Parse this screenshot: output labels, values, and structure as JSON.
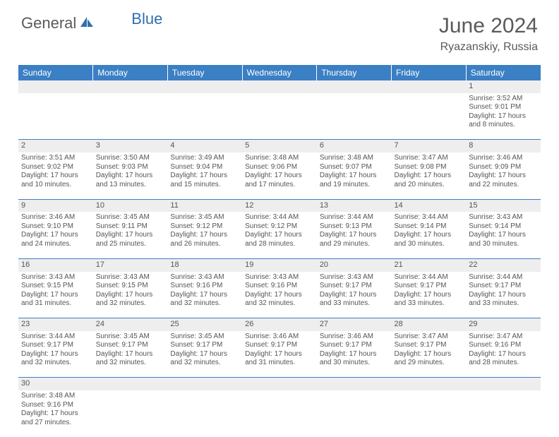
{
  "brand": {
    "part1": "General",
    "part2": "Blue",
    "part1_color": "#5a5a5a",
    "part2_color": "#2f6fb0"
  },
  "title": "June 2024",
  "location": "Ryazanskiy, Russia",
  "colors": {
    "header_bg": "#3b7fc4",
    "header_text": "#ffffff",
    "daynum_bg": "#eeeeee",
    "text": "#555555",
    "rule": "#3b7fc4",
    "sail": "#2f6fb0"
  },
  "weekdays": [
    "Sunday",
    "Monday",
    "Tuesday",
    "Wednesday",
    "Thursday",
    "Friday",
    "Saturday"
  ],
  "weeks": [
    [
      null,
      null,
      null,
      null,
      null,
      null,
      {
        "n": "1",
        "sr": "3:52 AM",
        "ss": "9:01 PM",
        "dl": "17 hours and 8 minutes."
      }
    ],
    [
      {
        "n": "2",
        "sr": "3:51 AM",
        "ss": "9:02 PM",
        "dl": "17 hours and 10 minutes."
      },
      {
        "n": "3",
        "sr": "3:50 AM",
        "ss": "9:03 PM",
        "dl": "17 hours and 13 minutes."
      },
      {
        "n": "4",
        "sr": "3:49 AM",
        "ss": "9:04 PM",
        "dl": "17 hours and 15 minutes."
      },
      {
        "n": "5",
        "sr": "3:48 AM",
        "ss": "9:06 PM",
        "dl": "17 hours and 17 minutes."
      },
      {
        "n": "6",
        "sr": "3:48 AM",
        "ss": "9:07 PM",
        "dl": "17 hours and 19 minutes."
      },
      {
        "n": "7",
        "sr": "3:47 AM",
        "ss": "9:08 PM",
        "dl": "17 hours and 20 minutes."
      },
      {
        "n": "8",
        "sr": "3:46 AM",
        "ss": "9:09 PM",
        "dl": "17 hours and 22 minutes."
      }
    ],
    [
      {
        "n": "9",
        "sr": "3:46 AM",
        "ss": "9:10 PM",
        "dl": "17 hours and 24 minutes."
      },
      {
        "n": "10",
        "sr": "3:45 AM",
        "ss": "9:11 PM",
        "dl": "17 hours and 25 minutes."
      },
      {
        "n": "11",
        "sr": "3:45 AM",
        "ss": "9:12 PM",
        "dl": "17 hours and 26 minutes."
      },
      {
        "n": "12",
        "sr": "3:44 AM",
        "ss": "9:12 PM",
        "dl": "17 hours and 28 minutes."
      },
      {
        "n": "13",
        "sr": "3:44 AM",
        "ss": "9:13 PM",
        "dl": "17 hours and 29 minutes."
      },
      {
        "n": "14",
        "sr": "3:44 AM",
        "ss": "9:14 PM",
        "dl": "17 hours and 30 minutes."
      },
      {
        "n": "15",
        "sr": "3:43 AM",
        "ss": "9:14 PM",
        "dl": "17 hours and 30 minutes."
      }
    ],
    [
      {
        "n": "16",
        "sr": "3:43 AM",
        "ss": "9:15 PM",
        "dl": "17 hours and 31 minutes."
      },
      {
        "n": "17",
        "sr": "3:43 AM",
        "ss": "9:15 PM",
        "dl": "17 hours and 32 minutes."
      },
      {
        "n": "18",
        "sr": "3:43 AM",
        "ss": "9:16 PM",
        "dl": "17 hours and 32 minutes."
      },
      {
        "n": "19",
        "sr": "3:43 AM",
        "ss": "9:16 PM",
        "dl": "17 hours and 32 minutes."
      },
      {
        "n": "20",
        "sr": "3:43 AM",
        "ss": "9:17 PM",
        "dl": "17 hours and 33 minutes."
      },
      {
        "n": "21",
        "sr": "3:44 AM",
        "ss": "9:17 PM",
        "dl": "17 hours and 33 minutes."
      },
      {
        "n": "22",
        "sr": "3:44 AM",
        "ss": "9:17 PM",
        "dl": "17 hours and 33 minutes."
      }
    ],
    [
      {
        "n": "23",
        "sr": "3:44 AM",
        "ss": "9:17 PM",
        "dl": "17 hours and 32 minutes."
      },
      {
        "n": "24",
        "sr": "3:45 AM",
        "ss": "9:17 PM",
        "dl": "17 hours and 32 minutes."
      },
      {
        "n": "25",
        "sr": "3:45 AM",
        "ss": "9:17 PM",
        "dl": "17 hours and 32 minutes."
      },
      {
        "n": "26",
        "sr": "3:46 AM",
        "ss": "9:17 PM",
        "dl": "17 hours and 31 minutes."
      },
      {
        "n": "27",
        "sr": "3:46 AM",
        "ss": "9:17 PM",
        "dl": "17 hours and 30 minutes."
      },
      {
        "n": "28",
        "sr": "3:47 AM",
        "ss": "9:17 PM",
        "dl": "17 hours and 29 minutes."
      },
      {
        "n": "29",
        "sr": "3:47 AM",
        "ss": "9:16 PM",
        "dl": "17 hours and 28 minutes."
      }
    ],
    [
      {
        "n": "30",
        "sr": "3:48 AM",
        "ss": "9:16 PM",
        "dl": "17 hours and 27 minutes."
      },
      null,
      null,
      null,
      null,
      null,
      null
    ]
  ],
  "labels": {
    "sunrise": "Sunrise:",
    "sunset": "Sunset:",
    "daylight": "Daylight:"
  }
}
